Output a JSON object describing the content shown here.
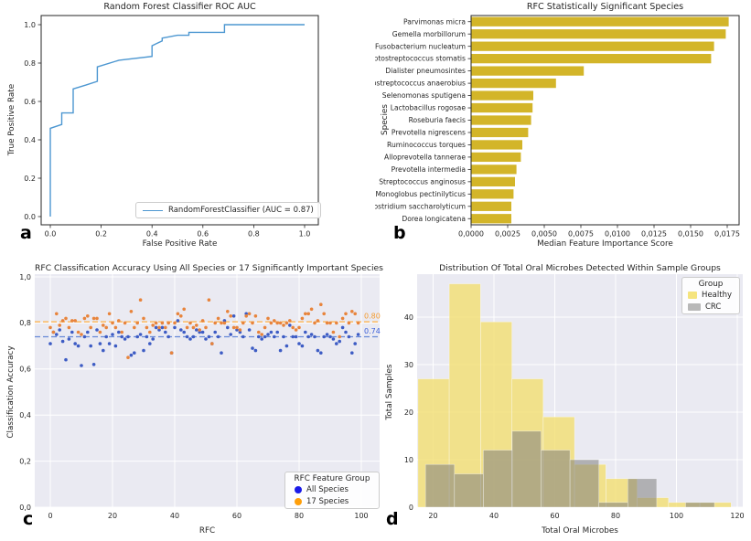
{
  "panels": {
    "a": {
      "letter": "a"
    },
    "b": {
      "letter": "b"
    },
    "c": {
      "letter": "c"
    },
    "d": {
      "letter": "d"
    }
  },
  "chart_data": [
    {
      "id": "roc_curve",
      "type": "line",
      "title": "Random Forest Classifier ROC AUC",
      "xlabel": "False Positive Rate",
      "ylabel": "True Positive Rate",
      "xlim": [
        -0.04,
        1.05
      ],
      "ylim": [
        -0.05,
        1.05
      ],
      "grid": false,
      "xticks": {
        "values": [
          0,
          0.2,
          0.4,
          0.6,
          0.8,
          1.0
        ],
        "labels": [
          "0.0",
          "0.2",
          "0.4",
          "0.6",
          "0.8",
          "1.0"
        ]
      },
      "yticks": {
        "values": [
          0,
          0.2,
          0.4,
          0.6,
          0.8,
          1.0
        ],
        "labels": [
          "0.0",
          "0.2",
          "0.4",
          "0.6",
          "0.8",
          "1.0"
        ]
      },
      "legend_position": "lower right",
      "series": [
        {
          "name": "RandomForestClassifier (AUC = 0.87)",
          "auc": 0.87,
          "color": "#4d97d1",
          "points": [
            [
              0.0,
              0.0
            ],
            [
              0.0,
              0.46
            ],
            [
              0.045,
              0.48
            ],
            [
              0.045,
              0.54
            ],
            [
              0.09,
              0.54
            ],
            [
              0.09,
              0.665
            ],
            [
              0.14,
              0.685
            ],
            [
              0.185,
              0.705
            ],
            [
              0.185,
              0.78
            ],
            [
              0.27,
              0.815
            ],
            [
              0.4,
              0.835
            ],
            [
              0.4,
              0.89
            ],
            [
              0.415,
              0.9
            ],
            [
              0.44,
              0.915
            ],
            [
              0.44,
              0.93
            ],
            [
              0.5,
              0.945
            ],
            [
              0.545,
              0.945
            ],
            [
              0.545,
              0.96
            ],
            [
              0.685,
              0.96
            ],
            [
              0.685,
              1.0
            ],
            [
              1.0,
              1.0
            ]
          ]
        }
      ]
    },
    {
      "id": "species_importance",
      "type": "bar",
      "orientation": "horizontal",
      "title": "RFC Statistically Significant Species",
      "xlabel": "Median Feature Importance Score",
      "ylabel": "Species",
      "bar_color": "#d3b529",
      "xlim": [
        0,
        0.0183
      ],
      "grid": false,
      "xticks": {
        "values": [
          0,
          0.0025,
          0.005,
          0.0075,
          0.01,
          0.0125,
          0.015,
          0.0175
        ],
        "labels": [
          "0,0000",
          "0,0025",
          "0,0050",
          "0,0075",
          "0,0100",
          "0,0125",
          "0,0150",
          "0,0175"
        ]
      },
      "categories": [
        "Parvimonas micra",
        "Gemella morbillorum",
        "Fusobacterium nucleatum",
        "Peptostreptococcus stomatis",
        "Dialister pneumosintes",
        "Peptostreptococcus anaerobius",
        "Selenomonas sputigena",
        "Lactobacillus rogosae",
        "Roseburia faecis",
        "Prevotella nigrescens",
        "Ruminococcus torques",
        "Alloprevotella tannerae",
        "Prevotella intermedia",
        "Streptococcus anginosus",
        "Monoglobus pectinilyticus",
        "Clostridium saccharolyticum",
        "Dorea longicatena"
      ],
      "values": [
        0.0176,
        0.0174,
        0.0166,
        0.0164,
        0.0077,
        0.0058,
        0.00425,
        0.0042,
        0.0041,
        0.0039,
        0.0035,
        0.0034,
        0.0031,
        0.003,
        0.0029,
        0.00275,
        0.00275
      ]
    },
    {
      "id": "rfc_accuracy_scatter",
      "type": "scatter",
      "title": "RFC Classification Accuracy Using All Species or 17 Significantly Important Species",
      "xlabel": "RFC",
      "ylabel": "Classification Accuracy",
      "background": "#eaeaf2",
      "grid": true,
      "xlim": [
        -5,
        105
      ],
      "ylim": [
        0,
        1
      ],
      "xticks": {
        "values": [
          0,
          20,
          40,
          60,
          80,
          100
        ],
        "labels": [
          "0",
          "20",
          "40",
          "60",
          "80",
          "100"
        ]
      },
      "yticks": {
        "values": [
          0,
          0.2,
          0.4,
          0.6,
          0.8,
          1.0
        ],
        "labels": [
          "0,0",
          "0,2",
          "0,4",
          "0,6",
          "0,8",
          "1,0"
        ]
      },
      "hlines": [
        {
          "y": 0.805,
          "label": "0.80",
          "line_color": "#ffae42",
          "label_color": "#f59c2f",
          "style": "dashed"
        },
        {
          "y": 0.74,
          "label": "0.74",
          "line_color": "#6688d8",
          "label_color": "#3a5fd9",
          "style": "dashed"
        }
      ],
      "legend": {
        "title": "RFC Feature Group",
        "position": "lower right"
      },
      "x_rule": "x = index 0..99 for both series",
      "series": [
        {
          "name": "All Species",
          "point_color": "#3d5cc4",
          "legend_color": "#1a1ae8",
          "y": [
            0.71,
            0.76,
            0.75,
            0.77,
            0.72,
            0.64,
            0.73,
            0.76,
            0.71,
            0.7,
            0.615,
            0.74,
            0.76,
            0.7,
            0.62,
            0.77,
            0.71,
            0.68,
            0.74,
            0.71,
            0.75,
            0.7,
            0.76,
            0.74,
            0.73,
            0.74,
            0.66,
            0.67,
            0.74,
            0.75,
            0.68,
            0.74,
            0.71,
            0.73,
            0.78,
            0.77,
            0.78,
            0.76,
            0.74,
            0.67,
            0.78,
            0.81,
            0.77,
            0.76,
            0.74,
            0.73,
            0.74,
            0.77,
            0.76,
            0.76,
            0.73,
            0.74,
            0.71,
            0.76,
            0.74,
            0.67,
            0.81,
            0.78,
            0.75,
            0.83,
            0.77,
            0.76,
            0.74,
            0.84,
            0.77,
            0.69,
            0.68,
            0.74,
            0.73,
            0.74,
            0.75,
            0.76,
            0.74,
            0.76,
            0.68,
            0.74,
            0.7,
            0.79,
            0.74,
            0.74,
            0.71,
            0.7,
            0.76,
            0.74,
            0.75,
            0.74,
            0.68,
            0.67,
            0.74,
            0.75,
            0.74,
            0.73,
            0.71,
            0.72,
            0.78,
            0.76,
            0.74,
            0.67,
            0.71,
            0.75
          ]
        },
        {
          "name": "17 Species",
          "point_color": "#e8843c",
          "legend_color": "#ff9f0a",
          "y": [
            0.78,
            0.76,
            0.84,
            0.79,
            0.81,
            0.82,
            0.78,
            0.81,
            0.81,
            0.76,
            0.75,
            0.82,
            0.83,
            0.78,
            0.82,
            0.82,
            0.76,
            0.79,
            0.78,
            0.84,
            0.8,
            0.78,
            0.81,
            0.76,
            0.8,
            0.65,
            0.85,
            0.78,
            0.8,
            0.9,
            0.82,
            0.78,
            0.76,
            0.79,
            0.8,
            0.78,
            0.8,
            0.78,
            0.8,
            0.67,
            0.8,
            0.84,
            0.83,
            0.86,
            0.78,
            0.8,
            0.78,
            0.79,
            0.77,
            0.81,
            0.78,
            0.9,
            0.71,
            0.8,
            0.82,
            0.8,
            0.8,
            0.85,
            0.83,
            0.78,
            0.78,
            0.77,
            0.8,
            0.83,
            0.84,
            0.8,
            0.83,
            0.76,
            0.75,
            0.78,
            0.82,
            0.8,
            0.81,
            0.8,
            0.8,
            0.79,
            0.8,
            0.81,
            0.78,
            0.77,
            0.78,
            0.82,
            0.84,
            0.84,
            0.86,
            0.8,
            0.81,
            0.88,
            0.84,
            0.8,
            0.8,
            0.76,
            0.8,
            0.74,
            0.82,
            0.84,
            0.8,
            0.85,
            0.84,
            0.8
          ]
        }
      ]
    },
    {
      "id": "oral_microbes_histogram",
      "type": "histogram",
      "title": "Distribution Of Total Oral Microbes Detected Within Sample Groups",
      "xlabel": "Total Oral Microbes",
      "ylabel": "Total Samples",
      "background": "#eaeaf2",
      "grid": true,
      "xlim": [
        13,
        122
      ],
      "ylim": [
        0,
        49
      ],
      "xticks": {
        "values": [
          20,
          40,
          60,
          80,
          100,
          120
        ],
        "labels": [
          "20",
          "40",
          "60",
          "80",
          "100",
          "120"
        ]
      },
      "yticks": {
        "values": [
          0,
          10,
          20,
          30,
          40
        ],
        "labels": [
          "0",
          "10",
          "20",
          "30",
          "40"
        ]
      },
      "legend": {
        "title": "Group",
        "position": "upper right"
      },
      "series": [
        {
          "name": "Healthy",
          "color": "#f2de71",
          "alpha": 0.8,
          "legend_color": "#f5e47e",
          "bin_edges": [
            15.0,
            25.3,
            35.6,
            45.9,
            56.2,
            66.5,
            76.8,
            87.1,
            97.4,
            107.7,
            118.0
          ],
          "counts": [
            27,
            47,
            39,
            27,
            19,
            9,
            6,
            2,
            1,
            1
          ]
        },
        {
          "name": "CRC",
          "color": "#808080",
          "alpha": 0.55,
          "legend_color": "#b8b8b8",
          "bin_edges": [
            17.5,
            27.0,
            36.5,
            46.0,
            55.5,
            65.0,
            74.5,
            84.0,
            93.5,
            103.0,
            112.5
          ],
          "counts": [
            9,
            7,
            12,
            16,
            12,
            10,
            1,
            6,
            0,
            1
          ]
        }
      ]
    }
  ]
}
